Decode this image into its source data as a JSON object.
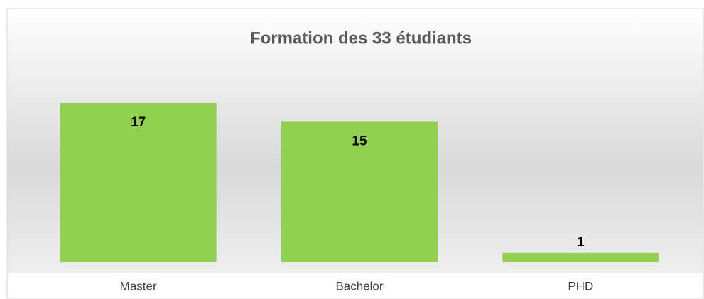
{
  "chart_data": {
    "type": "bar",
    "title": "Formation des 33 étudiants",
    "categories": [
      "Master",
      "Bachelor",
      "PHD"
    ],
    "values": [
      17,
      15,
      1
    ],
    "color": "#92d050"
  }
}
